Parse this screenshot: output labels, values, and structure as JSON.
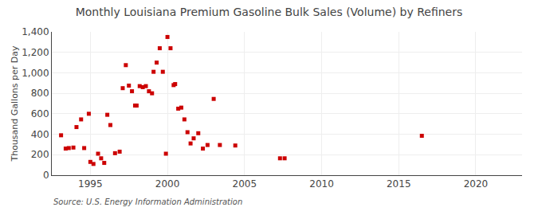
{
  "chart_data": {
    "type": "scatter",
    "title": "Monthly Louisiana Premium Gasoline Bulk Sales (Volume) by Refiners",
    "ylabel": "Thousand Gallons per Day",
    "annotations": [
      "Source: U.S. Energy Information Administration"
    ],
    "color": "#cc0000",
    "marker": "square",
    "grid": true,
    "xlim": [
      1992.5,
      2023
    ],
    "xticks": [
      1995,
      2000,
      2005,
      2010,
      2015,
      2020
    ],
    "ylim": [
      0,
      1400
    ],
    "yticks": [
      0,
      200,
      400,
      600,
      800,
      {
        "value": 1000,
        "label": "1,000"
      },
      {
        "value": 1200,
        "label": "1,200"
      },
      {
        "value": 1400,
        "label": "1,400"
      }
    ],
    "x": [
      1993.1,
      1993.4,
      1993.6,
      1993.9,
      1994.1,
      1994.4,
      1994.6,
      1994.9,
      1995.0,
      1995.2,
      1995.5,
      1995.7,
      1995.9,
      1996.1,
      1996.3,
      1996.6,
      1996.9,
      1997.1,
      1997.3,
      1997.5,
      1997.7,
      1997.9,
      1998.0,
      1998.2,
      1998.4,
      1998.6,
      1998.8,
      1999.0,
      1999.1,
      1999.3,
      1999.5,
      1999.7,
      1999.9,
      2000.0,
      2000.2,
      2000.4,
      2000.5,
      2000.7,
      2000.9,
      2001.1,
      2001.3,
      2001.5,
      2001.7,
      2002.0,
      2002.3,
      2002.6,
      2003.0,
      2003.4,
      2004.4,
      2007.3,
      2007.6,
      2016.5
    ],
    "values": [
      390,
      260,
      265,
      270,
      470,
      545,
      265,
      600,
      130,
      110,
      210,
      165,
      120,
      590,
      490,
      215,
      230,
      850,
      1075,
      875,
      820,
      680,
      680,
      870,
      860,
      870,
      820,
      800,
      1010,
      1100,
      1240,
      1010,
      210,
      1350,
      1240,
      880,
      890,
      650,
      660,
      545,
      420,
      310,
      360,
      410,
      260,
      295,
      745,
      295,
      290,
      165,
      165,
      385
    ]
  }
}
